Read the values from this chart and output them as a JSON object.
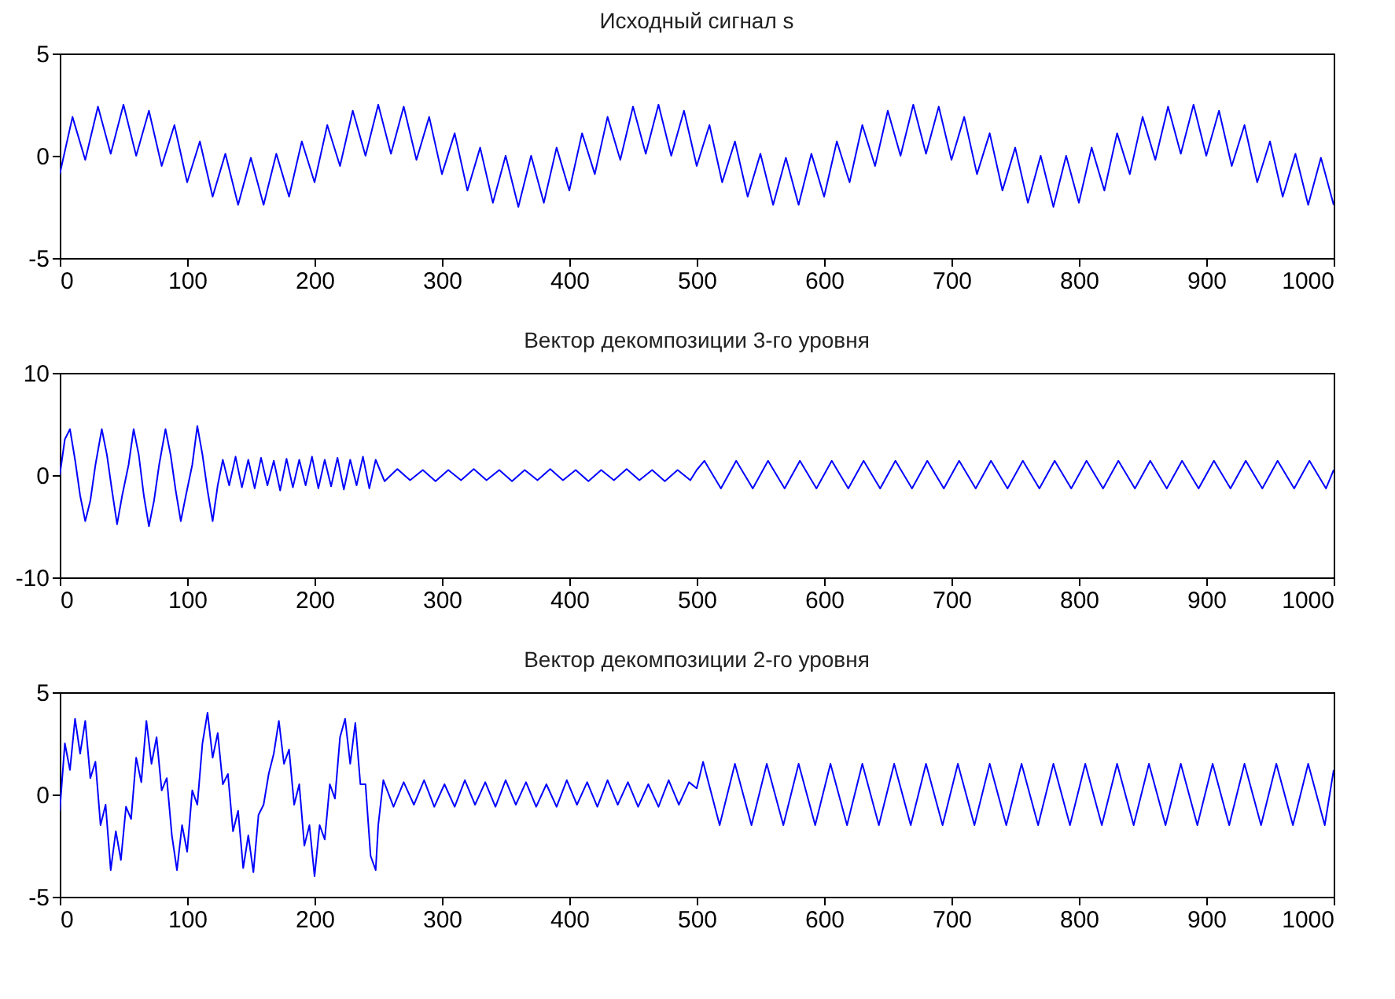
{
  "chart_data": [
    {
      "type": "line",
      "title": "Исходный сигнал s",
      "color": "#0000ff",
      "xlim": [
        0,
        1000
      ],
      "xticks": [
        0,
        100,
        200,
        300,
        400,
        500,
        600,
        700,
        800,
        900,
        1000
      ],
      "ylim": [
        -5,
        5
      ],
      "yticks": [
        -5,
        0,
        5
      ],
      "x": [
        0,
        10,
        20,
        30,
        40,
        50,
        60,
        70,
        80,
        90,
        100,
        110,
        120,
        130,
        140,
        150,
        160,
        170,
        180,
        190,
        200,
        210,
        220,
        230,
        240,
        250,
        260,
        270,
        280,
        290,
        300,
        310,
        320,
        330,
        340,
        350,
        360,
        370,
        380,
        390,
        400,
        410,
        420,
        430,
        440,
        450,
        460,
        470,
        480,
        490,
        500,
        510,
        520,
        530,
        540,
        550,
        560,
        570,
        580,
        590,
        600,
        610,
        620,
        630,
        640,
        650,
        660,
        670,
        680,
        690,
        700,
        710,
        720,
        730,
        740,
        750,
        760,
        770,
        780,
        790,
        800,
        810,
        820,
        830,
        840,
        850,
        860,
        870,
        880,
        890,
        900,
        910,
        920,
        930,
        940,
        950,
        960,
        970,
        980,
        990,
        1000
      ],
      "values": [
        -0.9,
        1.9,
        -0.2,
        2.4,
        0.1,
        2.5,
        0.0,
        2.2,
        -0.5,
        1.5,
        -1.3,
        0.7,
        -2.0,
        0.1,
        -2.4,
        -0.1,
        -2.4,
        0.1,
        -2.0,
        0.7,
        -1.3,
        1.5,
        -0.5,
        2.2,
        0.0,
        2.5,
        0.1,
        2.4,
        -0.2,
        1.9,
        -0.9,
        1.1,
        -1.7,
        0.4,
        -2.3,
        0.0,
        -2.5,
        0.0,
        -2.3,
        0.4,
        -1.7,
        1.1,
        -0.9,
        1.9,
        -0.2,
        2.4,
        0.1,
        2.5,
        0.0,
        2.2,
        -0.5,
        1.5,
        -1.3,
        0.7,
        -2.0,
        0.1,
        -2.4,
        -0.1,
        -2.4,
        0.1,
        -2.0,
        0.7,
        -1.3,
        1.5,
        -0.5,
        2.2,
        0.0,
        2.5,
        0.1,
        2.4,
        -0.2,
        1.9,
        -0.9,
        1.1,
        -1.7,
        0.4,
        -2.3,
        0.0,
        -2.5,
        0.0,
        -2.3,
        0.4,
        -1.7,
        1.1,
        -0.9,
        1.9,
        -0.2,
        2.4,
        0.1,
        2.5,
        0.0,
        2.2,
        -0.5,
        1.5,
        -1.3,
        0.7,
        -2.0,
        0.1,
        -2.4,
        -0.1,
        -2.4
      ]
    },
    {
      "type": "line",
      "title": "Вектор декомпозиции 3-го уровня",
      "color": "#0000ff",
      "xlim": [
        0,
        1000
      ],
      "xticks": [
        0,
        100,
        200,
        300,
        400,
        500,
        600,
        700,
        800,
        900,
        1000
      ],
      "ylim": [
        -10,
        10
      ],
      "yticks": [
        -10,
        0,
        10
      ],
      "x": [
        0,
        4,
        8,
        12,
        16,
        20,
        24,
        28,
        33,
        37,
        41,
        45,
        49,
        54,
        58,
        62,
        66,
        70,
        74,
        78,
        83,
        87,
        91,
        95,
        99,
        104,
        108,
        112,
        116,
        120,
        124,
        128,
        133,
        138,
        143,
        148,
        153,
        158,
        163,
        168,
        173,
        178,
        183,
        188,
        193,
        198,
        203,
        208,
        213,
        218,
        223,
        228,
        233,
        238,
        243,
        248,
        255,
        265,
        275,
        285,
        295,
        305,
        315,
        325,
        335,
        345,
        355,
        365,
        375,
        385,
        395,
        405,
        415,
        425,
        435,
        445,
        455,
        465,
        475,
        485,
        495,
        500,
        506,
        519,
        531,
        544,
        556,
        569,
        581,
        594,
        606,
        619,
        631,
        644,
        656,
        669,
        681,
        694,
        706,
        719,
        731,
        744,
        756,
        769,
        781,
        794,
        806,
        819,
        831,
        844,
        856,
        869,
        881,
        894,
        906,
        919,
        931,
        944,
        956,
        969,
        981,
        994,
        1000
      ],
      "values": [
        0,
        3.5,
        4.5,
        1.5,
        -2,
        -4.5,
        -2.5,
        1,
        4.5,
        2,
        -1.5,
        -4.8,
        -2,
        1,
        4.5,
        2,
        -2,
        -5,
        -2.5,
        1,
        4.5,
        2,
        -1.5,
        -4.5,
        -2,
        1,
        4.8,
        2,
        -1.5,
        -4.5,
        -1,
        1.5,
        -1,
        1.8,
        -1.2,
        1.5,
        -1.3,
        1.7,
        -1,
        1.4,
        -1.5,
        1.6,
        -1.2,
        1.5,
        -1,
        1.8,
        -1.3,
        1.5,
        -1.1,
        1.7,
        -1.4,
        1.5,
        -1,
        1.8,
        -1.3,
        1.5,
        -0.6,
        0.6,
        -0.5,
        0.5,
        -0.6,
        0.5,
        -0.5,
        0.6,
        -0.5,
        0.5,
        -0.6,
        0.5,
        -0.5,
        0.6,
        -0.5,
        0.5,
        -0.6,
        0.5,
        -0.5,
        0.6,
        -0.5,
        0.5,
        -0.6,
        0.5,
        -0.5,
        0.5,
        1.4,
        -1.3,
        1.4,
        -1.3,
        1.4,
        -1.3,
        1.4,
        -1.3,
        1.4,
        -1.3,
        1.4,
        -1.3,
        1.4,
        -1.3,
        1.4,
        -1.3,
        1.4,
        -1.3,
        1.4,
        -1.3,
        1.4,
        -1.3,
        1.4,
        -1.3,
        1.4,
        -1.3,
        1.4,
        -1.3,
        1.4,
        -1.3,
        1.4,
        -1.3,
        1.4,
        -1.3,
        1.4,
        -1.3,
        1.4,
        -1.3,
        1.4,
        -1.3,
        0.5
      ]
    },
    {
      "type": "line",
      "title": "Вектор декомпозиции 2-го уровня",
      "color": "#0000ff",
      "xlim": [
        0,
        1000
      ],
      "xticks": [
        0,
        100,
        200,
        300,
        400,
        500,
        600,
        700,
        800,
        900,
        1000
      ],
      "ylim": [
        -5,
        5
      ],
      "yticks": [
        -5,
        0,
        5
      ],
      "x": [
        0,
        4,
        8,
        12,
        16,
        20,
        24,
        28,
        32,
        36,
        40,
        44,
        48,
        52,
        56,
        60,
        64,
        68,
        72,
        76,
        80,
        84,
        88,
        92,
        96,
        100,
        104,
        108,
        112,
        116,
        120,
        124,
        128,
        132,
        136,
        140,
        144,
        148,
        152,
        156,
        160,
        164,
        168,
        172,
        176,
        180,
        184,
        188,
        192,
        196,
        200,
        204,
        208,
        212,
        216,
        220,
        224,
        228,
        232,
        236,
        240,
        244,
        248,
        250,
        254,
        262,
        270,
        278,
        286,
        294,
        302,
        310,
        318,
        326,
        334,
        342,
        350,
        358,
        366,
        374,
        382,
        390,
        398,
        406,
        414,
        422,
        430,
        438,
        446,
        454,
        462,
        470,
        478,
        486,
        494,
        500,
        505,
        518,
        530,
        543,
        555,
        568,
        580,
        593,
        605,
        618,
        630,
        643,
        655,
        668,
        680,
        693,
        705,
        718,
        730,
        743,
        755,
        768,
        780,
        793,
        805,
        818,
        830,
        843,
        855,
        868,
        880,
        893,
        905,
        918,
        930,
        943,
        955,
        968,
        980,
        993,
        1000
      ],
      "values": [
        -0.8,
        2.5,
        1.2,
        3.7,
        2.0,
        3.6,
        0.8,
        1.6,
        -1.5,
        -0.5,
        -3.7,
        -1.8,
        -3.2,
        -0.6,
        -1.2,
        1.8,
        0.6,
        3.6,
        1.5,
        2.8,
        0.2,
        0.8,
        -2.0,
        -3.7,
        -1.5,
        -2.8,
        0.2,
        -0.5,
        2.5,
        4.0,
        1.8,
        3.0,
        0.5,
        1.0,
        -1.8,
        -0.8,
        -3.6,
        -2.0,
        -3.8,
        -1.0,
        -0.5,
        1.0,
        2.0,
        3.6,
        1.5,
        2.2,
        -0.5,
        0.5,
        -2.5,
        -1.5,
        -4.0,
        -1.5,
        -2.2,
        0.5,
        -0.2,
        2.8,
        3.7,
        1.5,
        3.5,
        0.5,
        0.5,
        -3.0,
        -3.7,
        -1.5,
        0.7,
        -0.6,
        0.6,
        -0.5,
        0.7,
        -0.6,
        0.5,
        -0.6,
        0.7,
        -0.5,
        0.6,
        -0.6,
        0.7,
        -0.5,
        0.6,
        -0.6,
        0.5,
        -0.6,
        0.7,
        -0.5,
        0.6,
        -0.6,
        0.7,
        -0.5,
        0.6,
        -0.6,
        0.5,
        -0.6,
        0.7,
        -0.5,
        0.6,
        0.3,
        1.6,
        -1.5,
        1.5,
        -1.5,
        1.5,
        -1.5,
        1.5,
        -1.5,
        1.5,
        -1.5,
        1.5,
        -1.5,
        1.5,
        -1.5,
        1.5,
        -1.5,
        1.5,
        -1.5,
        1.5,
        -1.5,
        1.5,
        -1.5,
        1.5,
        -1.5,
        1.5,
        -1.5,
        1.5,
        -1.5,
        1.5,
        -1.5,
        1.5,
        -1.5,
        1.5,
        -1.5,
        1.5,
        -1.5,
        1.5,
        -1.5,
        1.5,
        -1.5,
        1.2
      ]
    }
  ]
}
